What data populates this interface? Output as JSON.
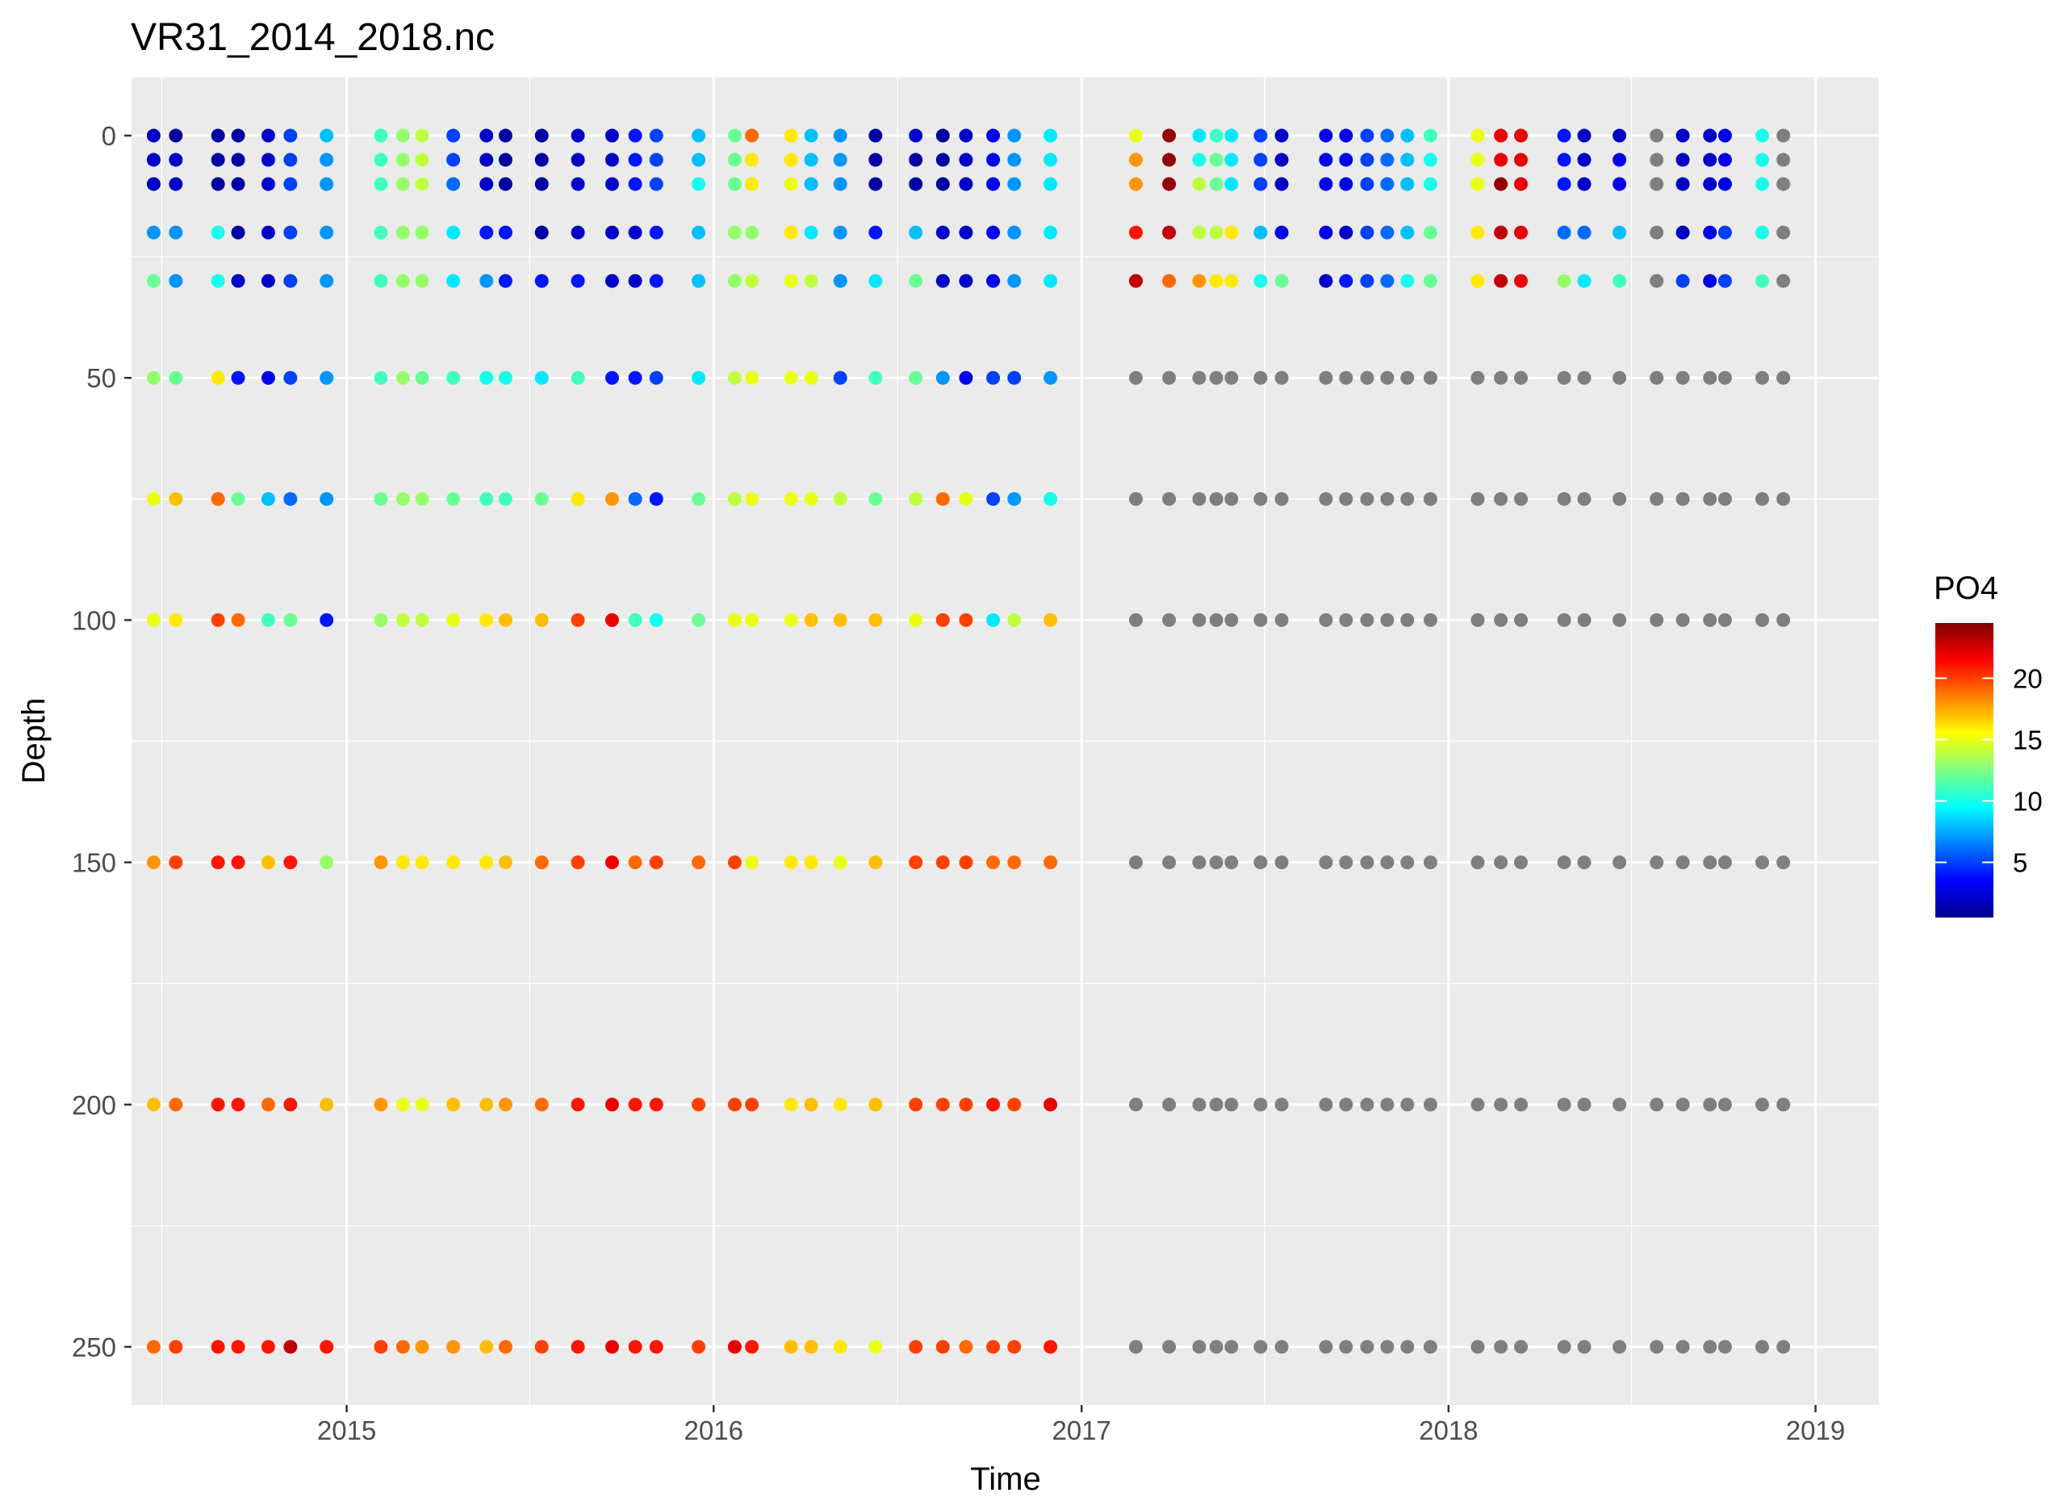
{
  "chart_data": {
    "type": "scatter",
    "title": "VR31_2014_2018.nc",
    "xlabel": "Time",
    "ylabel": "Depth",
    "x_ticks": [
      "2015",
      "2016",
      "2017",
      "2018",
      "2019"
    ],
    "y_ticks": [
      "0",
      "50",
      "100",
      "150",
      "200",
      "250"
    ],
    "xlim": [
      "2014-06-01",
      "2019-03-05"
    ],
    "ylim": [
      -12,
      262
    ],
    "y_reversed": true,
    "grid": true,
    "legend": {
      "title": "PO4",
      "placement": "right",
      "ticks": [
        "5",
        "10",
        "15",
        "20"
      ],
      "min": 0.5,
      "max": 24.5,
      "na_color": "#7f7f7f"
    },
    "depths": [
      0,
      5,
      10,
      20,
      30,
      50,
      75,
      100,
      150,
      200,
      250
    ],
    "dates": [
      "2014-06-23",
      "2014-07-15",
      "2014-08-26",
      "2014-09-15",
      "2014-10-15",
      "2014-11-06",
      "2014-12-12",
      "2015-02-04",
      "2015-02-26",
      "2015-03-17",
      "2015-04-17",
      "2015-05-20",
      "2015-06-08",
      "2015-07-14",
      "2015-08-19",
      "2015-09-22",
      "2015-10-15",
      "2015-11-05",
      "2015-12-17",
      "2016-01-22",
      "2016-02-08",
      "2016-03-18",
      "2016-04-07",
      "2016-05-06",
      "2016-06-10",
      "2016-07-20",
      "2016-08-16",
      "2016-09-08",
      "2016-10-05",
      "2016-10-26",
      "2016-12-01",
      "2017-02-24",
      "2017-03-29",
      "2017-04-28",
      "2017-05-15",
      "2017-05-30",
      "2017-06-28",
      "2017-07-19",
      "2017-09-01",
      "2017-09-21",
      "2017-10-12",
      "2017-11-01",
      "2017-11-21",
      "2017-12-14",
      "2018-01-30",
      "2018-02-22",
      "2018-03-14",
      "2018-04-26",
      "2018-05-16",
      "2018-06-20",
      "2018-07-27",
      "2018-08-22",
      "2018-09-18",
      "2018-10-03",
      "2018-11-09",
      "2018-11-30"
    ],
    "values": [
      [
        2,
        2,
        2,
        7,
        12,
        13,
        15,
        15,
        18,
        17,
        19
      ],
      [
        1,
        2,
        2,
        7,
        7,
        12,
        17,
        16,
        20,
        19,
        20
      ],
      [
        1,
        1,
        1,
        10,
        10,
        16,
        19,
        20,
        21,
        21,
        21
      ],
      [
        1,
        1,
        1,
        1,
        2,
        4,
        12,
        19,
        21,
        21,
        21
      ],
      [
        2,
        2,
        2,
        2,
        2,
        3,
        8,
        11,
        17,
        19,
        21
      ],
      [
        5,
        5,
        5,
        5,
        5,
        5,
        6,
        12,
        21,
        21,
        23
      ],
      [
        8,
        7,
        7,
        7,
        7,
        7,
        7,
        4,
        13,
        17,
        21
      ],
      [
        11,
        11,
        11,
        11,
        11,
        11,
        12,
        13,
        18,
        18,
        20
      ],
      [
        13,
        13,
        13,
        13,
        13,
        13,
        13,
        14,
        16,
        15,
        19
      ],
      [
        14,
        14,
        14,
        13,
        13,
        12,
        13,
        14,
        16,
        15,
        18
      ],
      [
        5,
        5,
        6,
        9,
        9,
        11,
        12,
        15,
        16,
        17,
        18
      ],
      [
        2,
        2,
        2,
        4,
        7,
        10,
        11,
        16,
        16,
        17,
        17
      ],
      [
        1,
        1,
        1,
        4,
        4,
        10,
        11,
        17,
        17,
        18,
        19
      ],
      [
        1,
        1,
        1,
        1,
        4,
        9,
        12,
        17,
        19,
        19,
        20
      ],
      [
        2,
        2,
        2,
        2,
        4,
        11,
        16,
        20,
        20,
        21,
        21
      ],
      [
        2,
        2,
        2,
        2,
        2,
        4,
        18,
        22,
        22,
        22,
        22
      ],
      [
        4,
        4,
        4,
        2,
        2,
        4,
        6,
        11,
        19,
        21,
        21
      ],
      [
        5,
        5,
        5,
        4,
        4,
        5,
        4,
        10,
        20,
        21,
        21
      ],
      [
        8,
        8,
        10,
        8,
        8,
        9,
        12,
        12,
        19,
        20,
        20
      ],
      [
        12,
        12,
        12,
        13,
        13,
        14,
        14,
        15,
        20,
        20,
        22
      ],
      [
        19,
        16,
        16,
        13,
        14,
        15,
        15,
        15,
        15,
        20,
        21
      ],
      [
        16,
        16,
        15,
        16,
        15,
        15,
        15,
        15,
        16,
        16,
        17
      ],
      [
        8,
        8,
        8,
        9,
        14,
        15,
        15,
        17,
        16,
        17,
        17
      ],
      [
        7,
        7,
        7,
        7,
        7,
        5,
        14,
        17,
        15,
        16,
        16
      ],
      [
        1,
        1,
        1,
        4,
        9,
        11,
        12,
        17,
        17,
        17,
        15
      ],
      [
        2,
        1,
        1,
        8,
        12,
        12,
        14,
        15,
        20,
        20,
        20
      ],
      [
        1,
        1,
        1,
        2,
        2,
        7,
        19,
        20,
        20,
        20,
        20
      ],
      [
        2,
        2,
        2,
        2,
        2,
        3,
        15,
        20,
        20,
        20,
        19
      ],
      [
        3,
        3,
        3,
        3,
        3,
        5,
        5,
        9,
        19,
        21,
        20
      ],
      [
        7,
        7,
        7,
        7,
        7,
        5,
        7,
        14,
        19,
        20,
        20
      ],
      [
        9,
        9,
        9,
        9,
        9,
        7,
        10,
        17,
        19,
        22,
        21
      ],
      [
        15,
        18,
        18,
        21,
        23,
        null,
        null,
        null,
        null,
        null,
        null
      ],
      [
        24,
        24,
        24,
        23,
        19,
        null,
        null,
        null,
        null,
        null,
        null
      ],
      [
        9,
        10,
        14,
        14,
        18,
        null,
        null,
        null,
        null,
        null,
        null
      ],
      [
        11,
        12,
        12,
        14,
        16,
        null,
        null,
        null,
        null,
        null,
        null
      ],
      [
        9,
        9,
        9,
        16,
        16,
        null,
        null,
        null,
        null,
        null,
        null
      ],
      [
        5,
        5,
        5,
        8,
        10,
        null,
        null,
        null,
        null,
        null,
        null
      ],
      [
        2,
        2,
        2,
        3,
        12,
        null,
        null,
        null,
        null,
        null,
        null
      ],
      [
        3,
        3,
        3,
        3,
        2,
        null,
        null,
        null,
        null,
        null,
        null
      ],
      [
        3,
        3,
        3,
        2,
        4,
        null,
        null,
        null,
        null,
        null,
        null
      ],
      [
        5,
        5,
        5,
        5,
        5,
        null,
        null,
        null,
        null,
        null,
        null
      ],
      [
        6,
        6,
        6,
        6,
        6,
        null,
        null,
        null,
        null,
        null,
        null
      ],
      [
        8,
        8,
        8,
        8,
        10,
        null,
        null,
        null,
        null,
        null,
        null
      ],
      [
        11,
        10,
        10,
        12,
        12,
        null,
        null,
        null,
        null,
        null,
        null
      ],
      [
        15,
        15,
        15,
        16,
        16,
        null,
        null,
        null,
        null,
        null,
        null
      ],
      [
        22,
        22,
        24,
        23,
        23,
        null,
        null,
        null,
        null,
        null,
        null
      ],
      [
        22,
        22,
        22,
        22,
        22,
        null,
        null,
        null,
        null,
        null,
        null
      ],
      [
        4,
        4,
        4,
        6,
        13,
        null,
        null,
        null,
        null,
        null,
        null
      ],
      [
        2,
        2,
        2,
        6,
        9,
        null,
        null,
        null,
        null,
        null,
        null
      ],
      [
        2,
        3,
        3,
        8,
        11,
        null,
        null,
        null,
        null,
        null,
        null
      ],
      [
        null,
        null,
        null,
        null,
        null,
        null,
        null,
        null,
        null,
        null,
        null
      ],
      [
        2,
        2,
        2,
        2,
        5,
        null,
        null,
        null,
        null,
        null,
        null
      ],
      [
        2,
        2,
        2,
        3,
        3,
        null,
        null,
        null,
        null,
        null,
        null
      ],
      [
        3,
        3,
        3,
        5,
        5,
        null,
        null,
        null,
        null,
        null,
        null
      ],
      [
        10,
        10,
        10,
        10,
        11,
        null,
        null,
        null,
        null,
        null,
        null
      ],
      [
        null,
        null,
        null,
        null,
        null,
        null,
        null,
        null,
        null,
        null,
        null
      ]
    ]
  }
}
